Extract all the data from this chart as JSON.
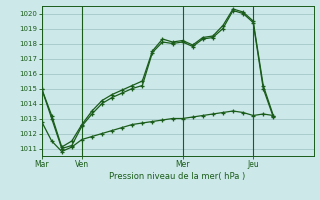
{
  "title": "Pression niveau de la mer( hPa )",
  "background_color": "#cce8e8",
  "grid_color": "#aacccc",
  "line_color": "#1a5c1a",
  "ylim": [
    1010.5,
    1020.5
  ],
  "yticks": [
    1011,
    1012,
    1013,
    1014,
    1015,
    1016,
    1017,
    1018,
    1019,
    1020
  ],
  "day_labels": [
    "Mar",
    "Ven",
    "Mer",
    "Jeu"
  ],
  "day_positions": [
    0,
    4,
    14,
    21
  ],
  "xlim": [
    0,
    27
  ],
  "series1_x": [
    0,
    1,
    2,
    3,
    4,
    5,
    6,
    7,
    8,
    9,
    10,
    11,
    12,
    13,
    14,
    15,
    16,
    17,
    18,
    19,
    20,
    21,
    22,
    23
  ],
  "series1_y": [
    1015.0,
    1013.2,
    1011.1,
    1011.5,
    1012.6,
    1013.5,
    1014.2,
    1014.6,
    1014.9,
    1015.2,
    1015.5,
    1017.5,
    1018.3,
    1018.1,
    1018.2,
    1017.9,
    1018.4,
    1018.5,
    1019.2,
    1020.3,
    1020.1,
    1019.5,
    1015.2,
    1013.2
  ],
  "series2_x": [
    0,
    1,
    2,
    3,
    4,
    5,
    6,
    7,
    8,
    9,
    10,
    11,
    12,
    13,
    14,
    15,
    16,
    17,
    18,
    19,
    20,
    21,
    22,
    23
  ],
  "series2_y": [
    1015.0,
    1013.0,
    1011.0,
    1011.2,
    1012.5,
    1013.3,
    1014.0,
    1014.4,
    1014.7,
    1015.0,
    1015.2,
    1017.4,
    1018.1,
    1018.0,
    1018.1,
    1017.8,
    1018.3,
    1018.4,
    1019.0,
    1020.2,
    1020.0,
    1019.4,
    1015.0,
    1013.1
  ],
  "series3_x": [
    0,
    1,
    2,
    3,
    4,
    5,
    6,
    7,
    8,
    9,
    10,
    11,
    12,
    13,
    14,
    15,
    16,
    17,
    18,
    19,
    20,
    21,
    22,
    23
  ],
  "series3_y": [
    1012.8,
    1011.5,
    1010.8,
    1011.1,
    1011.6,
    1011.8,
    1012.0,
    1012.2,
    1012.4,
    1012.6,
    1012.7,
    1012.8,
    1012.9,
    1013.0,
    1013.0,
    1013.1,
    1013.2,
    1013.3,
    1013.4,
    1013.5,
    1013.4,
    1013.2,
    1013.3,
    1013.2
  ]
}
